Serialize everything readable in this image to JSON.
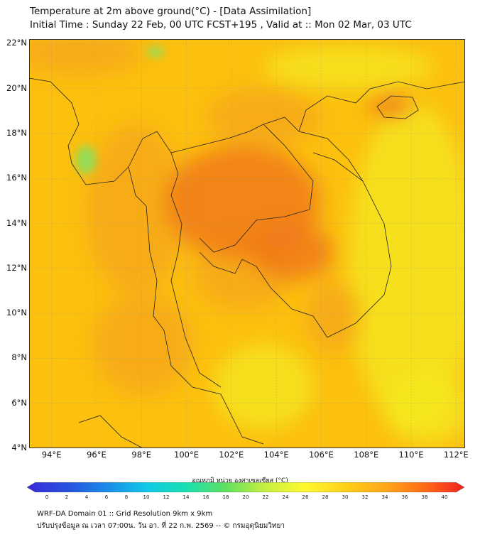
{
  "title": {
    "line1": "Temperature at 2m above ground(°C) - [Data Assimilation]",
    "line2": "Initial Time : Sunday 22 Feb, 00 UTC FCST+195 , Valid at :: Mon 02 Mar, 03 UTC"
  },
  "map": {
    "lat_labels": [
      {
        "value": 22,
        "text": "22°N"
      },
      {
        "value": 20,
        "text": "20°N"
      },
      {
        "value": 18,
        "text": "18°N"
      },
      {
        "value": 16,
        "text": "16°N"
      },
      {
        "value": 14,
        "text": "14°N"
      },
      {
        "value": 12,
        "text": "12°N"
      },
      {
        "value": 10,
        "text": "10°N"
      },
      {
        "value": 8,
        "text": "8°N"
      },
      {
        "value": 6,
        "text": "6°N"
      },
      {
        "value": 4,
        "text": "4°N"
      }
    ],
    "lon_labels": [
      {
        "value": 94,
        "text": "94°E"
      },
      {
        "value": 96,
        "text": "96°E"
      },
      {
        "value": 98,
        "text": "98°E"
      },
      {
        "value": 100,
        "text": "100°E"
      },
      {
        "value": 102,
        "text": "102°E"
      },
      {
        "value": 104,
        "text": "104°E"
      },
      {
        "value": 106,
        "text": "106°E"
      },
      {
        "value": 108,
        "text": "108°E"
      },
      {
        "value": 110,
        "text": "110°E"
      },
      {
        "value": 112,
        "text": "112°E"
      }
    ],
    "lat_range": [
      4,
      22.2
    ],
    "lon_range": [
      93,
      112.4
    ],
    "base_color": "#fcc00f",
    "hot_color": "#f07a1a",
    "warm_color": "#f5a418",
    "cool_color": "#f4ea20",
    "cold_color": "#86e060"
  },
  "colorbar": {
    "title": "อุณหภูมิ หน่วย องศาเซลเซียส (°C)",
    "min": 0,
    "max": 40,
    "ticks": [
      "0",
      "2",
      "4",
      "6",
      "8",
      "10",
      "12",
      "14",
      "16",
      "18",
      "20",
      "22",
      "24",
      "26",
      "28",
      "30",
      "32",
      "34",
      "36",
      "38",
      "40"
    ],
    "colors": [
      "#3a2ad8",
      "#2850e0",
      "#1a8ae8",
      "#10c8e8",
      "#18e0b0",
      "#60e060",
      "#c8f040",
      "#fff830",
      "#ffd018",
      "#ffa818",
      "#ff6a18",
      "#f02020"
    ]
  },
  "footer": {
    "line1": "WRF-DA Domain 01 :: Grid Resolution 9km x 9km",
    "line2": "ปรับปรุงข้อมูล ณ เวลา 07:00น. วัน อา. ที่ 22 ก.พ. 2569 -- © กรมอุตุนิยมวิทยา"
  }
}
